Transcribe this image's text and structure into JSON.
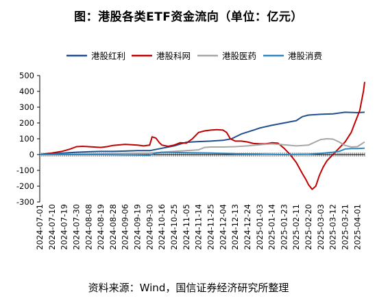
{
  "title": "图：港股各类ETF资金流向（单位：亿元）",
  "source": "资料来源：Wind，国信证券经济研究所整理",
  "chart_data": {
    "type": "line",
    "ylim": [
      -300,
      500
    ],
    "yticks": [
      -300,
      -200,
      -100,
      0,
      100,
      200,
      300,
      400,
      500
    ],
    "x_tick_labels": [
      "2024-07-01",
      "2024-07-10",
      "2024-07-19",
      "2024-07-30",
      "2024-08-08",
      "2024-08-19",
      "2024-08-28",
      "2024-09-06",
      "2024-09-19",
      "2024-09-30",
      "2024-10-16",
      "2024-10-25",
      "2024-11-05",
      "2024-11-14",
      "2024-11-25",
      "2024-12-04",
      "2024-12-13",
      "2024-12-24",
      "2025-01-03",
      "2025-01-14",
      "2025-01-23",
      "2025-02-11",
      "2025-02-20",
      "2025-03-03",
      "2025-03-12",
      "2025-03-21",
      "2025-04-01"
    ],
    "legend_position": "top",
    "series": [
      {
        "name": "港股红利",
        "color": "#1f4e8c",
        "points": [
          [
            0,
            0
          ],
          [
            1,
            5
          ],
          [
            2,
            10
          ],
          [
            3,
            15
          ],
          [
            4,
            18
          ],
          [
            5,
            20
          ],
          [
            6,
            20
          ],
          [
            7,
            22
          ],
          [
            8,
            25
          ],
          [
            9,
            25
          ],
          [
            10,
            40
          ],
          [
            11,
            55
          ],
          [
            12,
            78
          ],
          [
            13,
            82
          ],
          [
            14,
            85
          ],
          [
            15,
            90
          ],
          [
            15.7,
            100
          ],
          [
            16.5,
            130
          ],
          [
            17.5,
            155
          ],
          [
            18,
            168
          ],
          [
            19,
            185
          ],
          [
            20,
            200
          ],
          [
            21,
            215
          ],
          [
            21.5,
            240
          ],
          [
            22,
            250
          ],
          [
            23,
            255
          ],
          [
            24,
            258
          ],
          [
            25,
            268
          ],
          [
            26,
            265
          ],
          [
            26.6,
            268
          ]
        ]
      },
      {
        "name": "港股科网",
        "color": "#c00000",
        "points": [
          [
            0,
            0
          ],
          [
            1,
            10
          ],
          [
            1.8,
            20
          ],
          [
            2.5,
            35
          ],
          [
            3,
            50
          ],
          [
            3.5,
            52
          ],
          [
            4,
            50
          ],
          [
            5,
            45
          ],
          [
            5.5,
            50
          ],
          [
            6,
            58
          ],
          [
            7,
            65
          ],
          [
            8,
            60
          ],
          [
            8.5,
            55
          ],
          [
            9,
            60
          ],
          [
            9.2,
            112
          ],
          [
            9.5,
            105
          ],
          [
            9.8,
            75
          ],
          [
            10,
            60
          ],
          [
            10.5,
            52
          ],
          [
            11,
            60
          ],
          [
            11.5,
            75
          ],
          [
            12,
            72
          ],
          [
            12.5,
            100
          ],
          [
            13,
            140
          ],
          [
            13.5,
            150
          ],
          [
            14,
            155
          ],
          [
            14.5,
            158
          ],
          [
            15,
            155
          ],
          [
            15.3,
            140
          ],
          [
            15.6,
            100
          ],
          [
            16,
            85
          ],
          [
            16.5,
            85
          ],
          [
            17,
            80
          ],
          [
            17.5,
            70
          ],
          [
            18,
            68
          ],
          [
            18.5,
            68
          ],
          [
            19,
            75
          ],
          [
            19.5,
            72
          ],
          [
            20,
            40
          ],
          [
            20.5,
            0
          ],
          [
            21,
            -50
          ],
          [
            21.5,
            -120
          ],
          [
            21.8,
            -160
          ],
          [
            22,
            -190
          ],
          [
            22.3,
            -220
          ],
          [
            22.6,
            -200
          ],
          [
            22.9,
            -130
          ],
          [
            23.2,
            -80
          ],
          [
            23.5,
            -40
          ],
          [
            24,
            0
          ],
          [
            24.5,
            40
          ],
          [
            25,
            80
          ],
          [
            25.5,
            140
          ],
          [
            25.8,
            200
          ],
          [
            26.2,
            280
          ],
          [
            26.5,
            400
          ],
          [
            26.6,
            460
          ]
        ]
      },
      {
        "name": "港股医药",
        "color": "#a6a6a6",
        "points": [
          [
            0,
            0
          ],
          [
            3,
            2
          ],
          [
            5,
            5
          ],
          [
            7,
            8
          ],
          [
            9,
            10
          ],
          [
            10,
            15
          ],
          [
            11,
            20
          ],
          [
            12,
            25
          ],
          [
            13,
            30
          ],
          [
            13.5,
            45
          ],
          [
            14,
            48
          ],
          [
            15,
            48
          ],
          [
            16,
            50
          ],
          [
            17,
            55
          ],
          [
            18,
            62
          ],
          [
            19,
            68
          ],
          [
            20,
            62
          ],
          [
            21,
            55
          ],
          [
            22,
            60
          ],
          [
            23,
            95
          ],
          [
            23.5,
            100
          ],
          [
            24,
            98
          ],
          [
            24.5,
            80
          ],
          [
            25,
            58
          ],
          [
            25.5,
            48
          ],
          [
            26,
            50
          ],
          [
            26.3,
            65
          ],
          [
            26.6,
            80
          ]
        ]
      },
      {
        "name": "港股消费",
        "color": "#2e86c1",
        "points": [
          [
            0,
            0
          ],
          [
            5,
            0
          ],
          [
            8,
            -3
          ],
          [
            9,
            -5
          ],
          [
            9.5,
            10
          ],
          [
            10,
            15
          ],
          [
            12,
            12
          ],
          [
            14,
            10
          ],
          [
            16,
            5
          ],
          [
            18,
            3
          ],
          [
            20,
            0
          ],
          [
            22,
            2
          ],
          [
            23,
            8
          ],
          [
            24,
            15
          ],
          [
            24.5,
            20
          ],
          [
            25,
            35
          ],
          [
            25.5,
            38
          ],
          [
            26,
            38
          ],
          [
            26.6,
            40
          ]
        ]
      }
    ]
  }
}
